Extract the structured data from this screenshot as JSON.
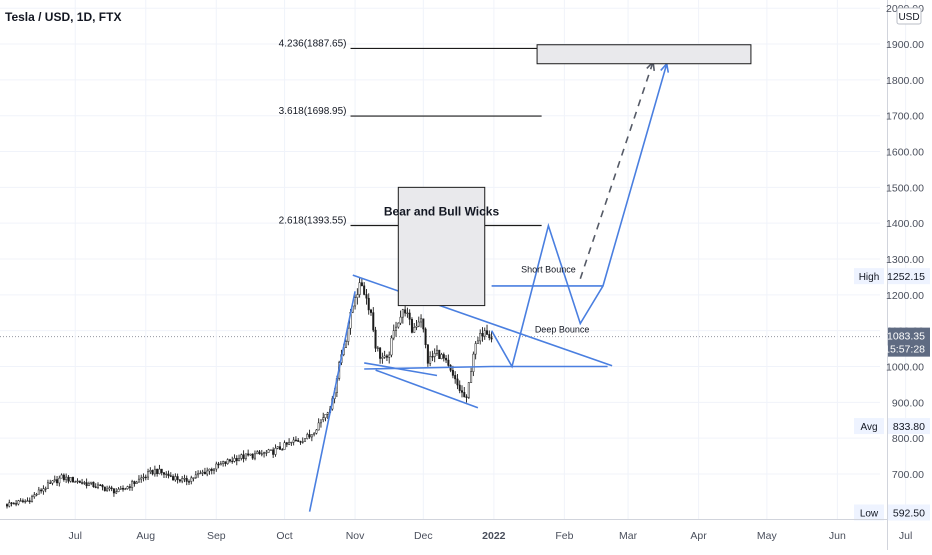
{
  "symbol_title": "Tesla / USD, 1D, FTX",
  "currency": "USD",
  "colors": {
    "candle": "#1b1b1b",
    "drawing": "#4a7fe0",
    "grid": "#f0f3fa",
    "fib": "#1b1b1b",
    "box_fill": "#e9e9ec",
    "box_stroke": "#1b1b1b",
    "price_badge": "#5f6b82",
    "label_bg": "#eef3ff",
    "text": "#131722",
    "axis_text": "#4a4f5c"
  },
  "chart_data": {
    "type": "candlestick",
    "y_axis": {
      "range": [
        580,
        2000
      ],
      "ticks": [
        700,
        800,
        900,
        1000,
        1100,
        1200,
        1300,
        1400,
        1500,
        1600,
        1700,
        1800,
        1900,
        2000
      ],
      "tick_labels": [
        "700.00",
        "800.00",
        "900.00",
        "1000.00",
        "1100.00",
        "1200.00",
        "1300.00",
        "1400.00",
        "1500.00",
        "1600.00",
        "1700.00",
        "1800.00",
        "1900.00",
        "2000.00"
      ]
    },
    "x_axis": {
      "start": "2021-06-01",
      "end": "2022-07-01",
      "ticks": [
        {
          "date": "2021-07-01",
          "label": "Jul",
          "bold": false
        },
        {
          "date": "2021-08-01",
          "label": "Aug",
          "bold": false
        },
        {
          "date": "2021-09-01",
          "label": "Sep",
          "bold": false
        },
        {
          "date": "2021-10-01",
          "label": "Oct",
          "bold": false
        },
        {
          "date": "2021-11-01",
          "label": "Nov",
          "bold": false
        },
        {
          "date": "2021-12-01",
          "label": "Dec",
          "bold": false
        },
        {
          "date": "2022-01-01",
          "label": "2022",
          "bold": true
        },
        {
          "date": "2022-02-01",
          "label": "Feb",
          "bold": false
        },
        {
          "date": "2022-03-01",
          "label": "Mar",
          "bold": false
        },
        {
          "date": "2022-04-01",
          "label": "Apr",
          "bold": false
        },
        {
          "date": "2022-05-01",
          "label": "May",
          "bold": false
        },
        {
          "date": "2022-06-01",
          "label": "Jun",
          "bold": false
        },
        {
          "date": "2022-07-01",
          "label": "Jul",
          "bold": false
        }
      ]
    },
    "price_anchors": [
      [
        "2021-06-01",
        615
      ],
      [
        "2021-06-10",
        625
      ],
      [
        "2021-06-17",
        660
      ],
      [
        "2021-06-25",
        690
      ],
      [
        "2021-07-05",
        675
      ],
      [
        "2021-07-20",
        650
      ],
      [
        "2021-08-05",
        710
      ],
      [
        "2021-08-18",
        680
      ],
      [
        "2021-08-30",
        715
      ],
      [
        "2021-09-10",
        745
      ],
      [
        "2021-09-25",
        760
      ],
      [
        "2021-10-05",
        790
      ],
      [
        "2021-10-12",
        805
      ],
      [
        "2021-10-18",
        860
      ],
      [
        "2021-10-22",
        900
      ],
      [
        "2021-10-25",
        1010
      ],
      [
        "2021-10-28",
        1080
      ],
      [
        "2021-11-01",
        1200
      ],
      [
        "2021-11-04",
        1230
      ],
      [
        "2021-11-08",
        1150
      ],
      [
        "2021-11-10",
        1060
      ],
      [
        "2021-11-12",
        1030
      ],
      [
        "2021-11-15",
        1015
      ],
      [
        "2021-11-19",
        1120
      ],
      [
        "2021-11-23",
        1160
      ],
      [
        "2021-11-26",
        1100
      ],
      [
        "2021-11-30",
        1140
      ],
      [
        "2021-12-03",
        1015
      ],
      [
        "2021-12-07",
        1040
      ],
      [
        "2021-12-10",
        1020
      ],
      [
        "2021-12-14",
        970
      ],
      [
        "2021-12-17",
        935
      ],
      [
        "2021-12-20",
        905
      ],
      [
        "2021-12-23",
        1040
      ],
      [
        "2021-12-28",
        1110
      ],
      [
        "2021-12-31",
        1083
      ]
    ],
    "last_price": 1083.35,
    "labels": {
      "high": {
        "label": "High",
        "value": "1252.15"
      },
      "avg": {
        "label": "Avg",
        "value": "833.80"
      },
      "low": {
        "label": "Low",
        "value": "592.50"
      },
      "last": {
        "value": "1083.35",
        "countdown": "15:57:28"
      }
    },
    "fib_levels": [
      {
        "label": "4.236(1887.65)",
        "value": 1887.65
      },
      {
        "label": "3.618(1698.95)",
        "value": 1698.95
      },
      {
        "label": "2.618(1393.55)",
        "value": 1393.55
      }
    ],
    "annotations": {
      "bear_bull_box": {
        "text": "Bear and Bull Wicks",
        "date_from": "2021-11-20",
        "date_to": "2021-12-28",
        "price_from": 1170,
        "price_to": 1500
      },
      "target_box": {
        "date_from": "2022-01-20",
        "date_to": "2022-04-24",
        "price_from": 1845,
        "price_to": 1898
      },
      "short_bounce": {
        "text": "Short Bounce",
        "date": "2022-01-25",
        "price": 1263
      },
      "deep_bounce": {
        "text": "Deep Bounce",
        "date": "2022-01-31",
        "price": 1095
      }
    },
    "drawings": {
      "channel_upper": [
        [
          "2021-10-31",
          1255
        ],
        [
          "2022-02-22",
          1002
        ]
      ],
      "channel_lower": [
        [
          "2021-11-05",
          993
        ],
        [
          "2021-12-31",
          1000
        ],
        [
          "2022-02-20",
          1000
        ]
      ],
      "flag_upper": [
        [
          "2021-11-05",
          1010
        ],
        [
          "2021-12-07",
          975
        ]
      ],
      "flag_lower": [
        [
          "2021-11-10",
          990
        ],
        [
          "2021-12-25",
          885
        ]
      ],
      "resistance_1": [
        [
          "2021-11-27",
          1172
        ],
        [
          "2021-12-28",
          1172
        ]
      ],
      "resistance_2": [
        [
          "2021-12-31",
          1225
        ],
        [
          "2022-02-18",
          1225
        ]
      ],
      "impulse_up": [
        [
          "2021-10-12",
          595
        ],
        [
          "2021-11-01",
          1210
        ]
      ],
      "projection_solid": [
        [
          "2021-12-31",
          1100
        ],
        [
          "2022-01-09",
          1000
        ],
        [
          "2022-01-25",
          1393
        ],
        [
          "2022-02-08",
          1120
        ],
        [
          "2022-02-18",
          1225
        ],
        [
          "2022-03-18",
          1845
        ]
      ],
      "projection_dashed": [
        [
          "2022-02-08",
          1245
        ],
        [
          "2022-03-12",
          1850
        ]
      ]
    }
  }
}
